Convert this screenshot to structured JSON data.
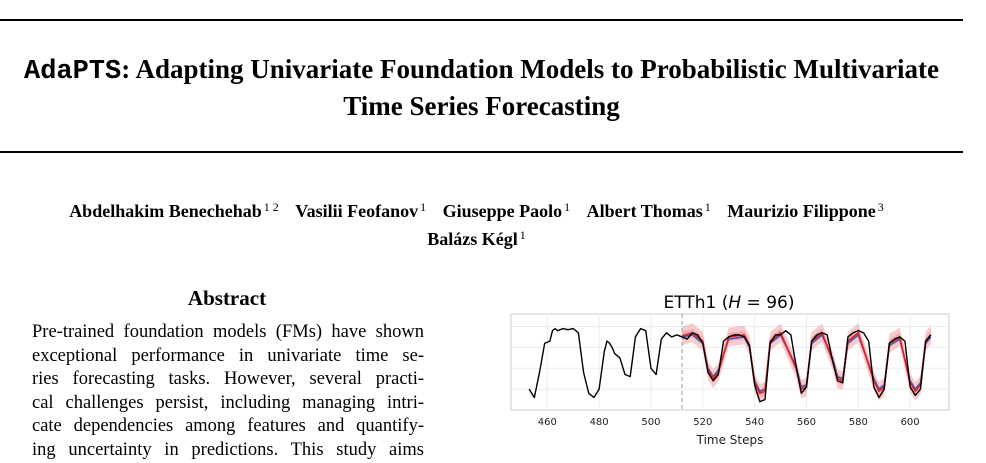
{
  "paper": {
    "title_prefix": "AdaPTS",
    "title_line1_rest": ": Adapting Univariate Foundation Models to Probabilistic Multivariate",
    "title_line2": "Time Series Forecasting",
    "authors": [
      {
        "name": "Abdelhakim Benechehab",
        "aff": "1 2"
      },
      {
        "name": "Vasilii Feofanov",
        "aff": "1"
      },
      {
        "name": "Giuseppe Paolo",
        "aff": "1"
      },
      {
        "name": "Albert Thomas",
        "aff": "1"
      },
      {
        "name": "Maurizio Filippone",
        "aff": "3"
      },
      {
        "name": "Balázs Kégl",
        "aff": "1"
      }
    ],
    "abstract_heading": "Abstract",
    "abstract_lines": [
      "Pre-trained foundation models (FMs) have shown",
      "exceptional performance in univariate time se-",
      "ries forecasting tasks. However, several practi-",
      "cal challenges persist, including managing intri-",
      "cate dependencies among features and quantify-",
      "ing uncertainty in predictions. This study aims"
    ]
  },
  "chart_data": {
    "type": "line",
    "title_prefix": "ETTh1 (",
    "title_italic": "H",
    "title_suffix": " = 96)",
    "xlabel": "Time Steps",
    "ylabel": "",
    "xlim": [
      446,
      615
    ],
    "ylim": [
      -3.0,
      1.6
    ],
    "xticks": [
      460,
      480,
      500,
      520,
      540,
      560,
      580,
      600
    ],
    "forecast_start": 512,
    "grid": true,
    "colors": {
      "truth": "#000000",
      "mean": "#3b5ba8",
      "median": "#e0202a",
      "band": "#f2a3a6"
    },
    "history": {
      "x": [
        453,
        455,
        457,
        459,
        461,
        462,
        463,
        464,
        466,
        468,
        470,
        472,
        474,
        476,
        478,
        480,
        482,
        483,
        484,
        485,
        486,
        488,
        490,
        492,
        494,
        496,
        498,
        500,
        502,
        504,
        506,
        508,
        510,
        512
      ],
      "y": [
        -2.0,
        -2.4,
        -1.2,
        0.2,
        0.3,
        0.8,
        0.9,
        0.8,
        0.9,
        0.85,
        0.9,
        0.7,
        -1.2,
        -2.2,
        -2.4,
        -2.0,
        -0.2,
        0.3,
        0.2,
        0.0,
        -0.3,
        -0.5,
        -1.3,
        -1.4,
        0.5,
        0.9,
        0.8,
        -1.0,
        -1.3,
        0.4,
        0.7,
        0.5,
        0.6,
        0.5
      ]
    },
    "truth": {
      "x": [
        512,
        514,
        516,
        518,
        520,
        522,
        524,
        526,
        528,
        530,
        532,
        534,
        536,
        538,
        540,
        542,
        544,
        546,
        548,
        550,
        552,
        554,
        556,
        558,
        560,
        562,
        564,
        566,
        568,
        570,
        572,
        574,
        576,
        578,
        580,
        582,
        584,
        586,
        588,
        590,
        592,
        594,
        596,
        598,
        600,
        602,
        604,
        606,
        608
      ],
      "y": [
        0.5,
        0.4,
        0.7,
        0.6,
        0.2,
        -1.2,
        -1.6,
        -1.3,
        0.3,
        0.5,
        0.6,
        0.6,
        0.5,
        0.1,
        -1.8,
        -2.6,
        -2.5,
        0.2,
        0.6,
        0.6,
        0.8,
        0.6,
        -0.9,
        -2.2,
        -1.9,
        0.3,
        0.6,
        0.7,
        0.6,
        -0.6,
        -1.6,
        -1.7,
        0.5,
        0.7,
        0.8,
        0.7,
        0.3,
        -1.9,
        -2.4,
        -2.0,
        0.2,
        0.4,
        0.5,
        0.3,
        -1.9,
        -2.3,
        -2.0,
        0.3,
        0.6
      ]
    },
    "mean": {
      "x": [
        512,
        516,
        520,
        522,
        524,
        526,
        530,
        536,
        538,
        540,
        542,
        544,
        546,
        550,
        556,
        558,
        560,
        562,
        566,
        570,
        572,
        574,
        576,
        580,
        586,
        588,
        590,
        592,
        596,
        600,
        602,
        604,
        606,
        608
      ],
      "y": [
        0.5,
        0.6,
        0.2,
        -1.0,
        -1.4,
        -1.1,
        0.4,
        0.5,
        0.0,
        -1.6,
        -2.1,
        -2.0,
        0.2,
        0.6,
        -0.9,
        -1.9,
        -1.8,
        0.2,
        0.6,
        -0.5,
        -1.4,
        -1.5,
        0.2,
        0.6,
        -1.5,
        -2.0,
        -1.8,
        0.1,
        0.4,
        -1.6,
        -2.0,
        -1.7,
        0.2,
        0.5
      ]
    },
    "median": {
      "x": [
        512,
        516,
        520,
        522,
        524,
        526,
        530,
        536,
        538,
        540,
        542,
        544,
        546,
        550,
        556,
        558,
        560,
        562,
        566,
        570,
        572,
        574,
        576,
        580,
        586,
        588,
        590,
        592,
        596,
        600,
        602,
        604,
        606,
        608
      ],
      "y": [
        0.55,
        0.7,
        0.3,
        -1.1,
        -1.5,
        -1.2,
        0.5,
        0.6,
        0.1,
        -1.7,
        -2.2,
        -2.1,
        0.3,
        0.7,
        -1.0,
        -2.0,
        -1.9,
        0.3,
        0.7,
        -0.6,
        -1.5,
        -1.6,
        0.3,
        0.7,
        -1.6,
        -2.1,
        -1.9,
        0.2,
        0.5,
        -1.7,
        -2.1,
        -1.8,
        0.3,
        0.6
      ]
    },
    "band_half_width": 0.45
  }
}
